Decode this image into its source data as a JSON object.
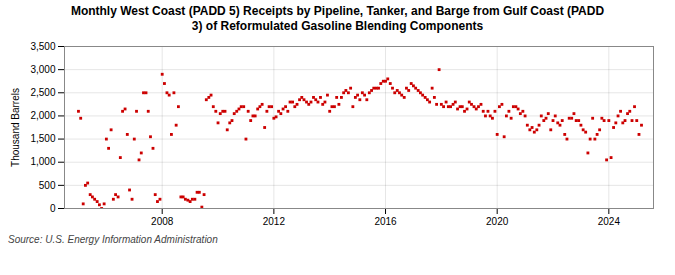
{
  "chart_data": {
    "type": "scatter",
    "title": "Monthly West Coast (PADD 5) Receipts by Pipeline, Tanker, and Barge from Gulf Coast (PADD\n3) of Reformulated Gasoline Blending Components",
    "ylabel": "Thousand Barrels",
    "source": "Source: U.S. Energy Information Administration",
    "color": "#cc0000",
    "marker": "square",
    "grid": true,
    "xlim": [
      2004.5,
      2025.6
    ],
    "xticks": [
      2008,
      2012,
      2016,
      2020,
      2024
    ],
    "ylim": [
      0,
      3500
    ],
    "yticks": [
      0,
      500,
      {
        "value": 1000,
        "label": "1,000"
      },
      {
        "value": 1500,
        "label": "1,500"
      },
      {
        "value": 2000,
        "label": "2,000"
      },
      {
        "value": 2500,
        "label": "2,500"
      },
      {
        "value": 3000,
        "label": "3,000"
      },
      {
        "value": 3500,
        "label": "3,500"
      }
    ],
    "x": [
      2005.0,
      2005.08,
      2005.17,
      2005.25,
      2005.33,
      2005.42,
      2005.5,
      2005.58,
      2005.67,
      2005.75,
      2005.83,
      2005.92,
      2006.0,
      2006.08,
      2006.17,
      2006.25,
      2006.33,
      2006.42,
      2006.5,
      2006.58,
      2006.67,
      2006.75,
      2006.83,
      2006.92,
      2007.0,
      2007.08,
      2007.17,
      2007.25,
      2007.33,
      2007.42,
      2007.5,
      2007.58,
      2007.67,
      2007.75,
      2007.83,
      2007.92,
      2008.0,
      2008.08,
      2008.17,
      2008.25,
      2008.33,
      2008.42,
      2008.5,
      2008.58,
      2008.67,
      2008.75,
      2008.83,
      2008.92,
      2009.0,
      2009.08,
      2009.17,
      2009.25,
      2009.33,
      2009.42,
      2009.5,
      2009.58,
      2009.67,
      2009.75,
      2009.83,
      2009.92,
      2010.0,
      2010.08,
      2010.17,
      2010.25,
      2010.33,
      2010.42,
      2010.5,
      2010.58,
      2010.67,
      2010.75,
      2010.83,
      2010.92,
      2011.0,
      2011.08,
      2011.17,
      2011.25,
      2011.33,
      2011.42,
      2011.5,
      2011.58,
      2011.67,
      2011.75,
      2011.83,
      2011.92,
      2012.0,
      2012.08,
      2012.17,
      2012.25,
      2012.33,
      2012.42,
      2012.5,
      2012.58,
      2012.67,
      2012.75,
      2012.83,
      2012.92,
      2013.0,
      2013.08,
      2013.17,
      2013.25,
      2013.33,
      2013.42,
      2013.5,
      2013.58,
      2013.67,
      2013.75,
      2013.83,
      2013.92,
      2014.0,
      2014.08,
      2014.17,
      2014.25,
      2014.33,
      2014.42,
      2014.5,
      2014.58,
      2014.67,
      2014.75,
      2014.83,
      2014.92,
      2015.0,
      2015.08,
      2015.17,
      2015.25,
      2015.33,
      2015.42,
      2015.5,
      2015.58,
      2015.67,
      2015.75,
      2015.83,
      2015.92,
      2016.0,
      2016.08,
      2016.17,
      2016.25,
      2016.33,
      2016.42,
      2016.5,
      2016.58,
      2016.67,
      2016.75,
      2016.83,
      2016.92,
      2017.0,
      2017.08,
      2017.17,
      2017.25,
      2017.33,
      2017.42,
      2017.5,
      2017.58,
      2017.67,
      2017.75,
      2017.83,
      2017.92,
      2018.0,
      2018.08,
      2018.17,
      2018.25,
      2018.33,
      2018.42,
      2018.5,
      2018.58,
      2018.67,
      2018.75,
      2018.83,
      2018.92,
      2019.0,
      2019.08,
      2019.17,
      2019.25,
      2019.33,
      2019.42,
      2019.5,
      2019.58,
      2019.67,
      2019.75,
      2019.83,
      2019.92,
      2020.0,
      2020.08,
      2020.17,
      2020.25,
      2020.33,
      2020.42,
      2020.5,
      2020.58,
      2020.67,
      2020.75,
      2020.83,
      2020.92,
      2021.0,
      2021.08,
      2021.17,
      2021.25,
      2021.33,
      2021.42,
      2021.5,
      2021.58,
      2021.67,
      2021.75,
      2021.83,
      2021.92,
      2022.0,
      2022.08,
      2022.17,
      2022.25,
      2022.33,
      2022.42,
      2022.5,
      2022.58,
      2022.67,
      2022.75,
      2022.83,
      2022.92,
      2023.0,
      2023.08,
      2023.17,
      2023.25,
      2023.33,
      2023.42,
      2023.5,
      2023.58,
      2023.67,
      2023.75,
      2023.83,
      2023.92,
      2024.0,
      2024.08,
      2024.17,
      2024.25,
      2024.33,
      2024.42,
      2024.5,
      2024.58,
      2024.67,
      2024.75,
      2024.83,
      2024.92,
      2025.0,
      2025.08,
      2025.17
    ],
    "values": [
      2100,
      1950,
      100,
      500,
      550,
      300,
      250,
      200,
      150,
      80,
      0,
      100,
      1500,
      1300,
      1700,
      200,
      300,
      250,
      1100,
      2100,
      2150,
      1600,
      400,
      200,
      1500,
      2100,
      1050,
      1200,
      2500,
      2500,
      2100,
      1550,
      1300,
      300,
      150,
      200,
      2900,
      2700,
      2500,
      2450,
      1600,
      2500,
      1800,
      2200,
      250,
      250,
      200,
      180,
      150,
      200,
      200,
      350,
      350,
      30,
      300,
      2350,
      2400,
      2450,
      2200,
      2100,
      1850,
      2050,
      2100,
      2100,
      1700,
      1850,
      1900,
      2050,
      2100,
      2150,
      2200,
      2200,
      1500,
      2100,
      1900,
      2000,
      2000,
      2150,
      2200,
      2250,
      1750,
      2100,
      2200,
      2200,
      1950,
      1980,
      2100,
      2050,
      2150,
      2200,
      2100,
      2300,
      2300,
      2200,
      2250,
      2350,
      2400,
      2350,
      2300,
      2250,
      2300,
      2400,
      2350,
      2300,
      2400,
      2250,
      2300,
      2450,
      2100,
      2200,
      2200,
      2400,
      2250,
      2400,
      2500,
      2550,
      2500,
      2600,
      2200,
      2400,
      2450,
      2350,
      2500,
      2450,
      2350,
      2500,
      2550,
      2600,
      2600,
      2600,
      2700,
      2750,
      2750,
      2800,
      2700,
      2600,
      2500,
      2550,
      2500,
      2450,
      2400,
      2600,
      2550,
      2700,
      2650,
      2600,
      2550,
      2500,
      2450,
      2400,
      2350,
      2300,
      2600,
      2400,
      2250,
      3000,
      2250,
      2200,
      2300,
      2200,
      2200,
      2250,
      2300,
      2150,
      2200,
      2200,
      2100,
      2150,
      2300,
      2250,
      2200,
      2150,
      2200,
      2250,
      2100,
      2000,
      2100,
      2000,
      1950,
      2100,
      1600,
      2200,
      2250,
      1550,
      2000,
      2100,
      1950,
      2200,
      2200,
      2150,
      2050,
      2100,
      2000,
      1800,
      1700,
      1750,
      1650,
      1700,
      1800,
      2000,
      1900,
      1950,
      2050,
      1700,
      1900,
      2000,
      1850,
      1800,
      1900,
      1600,
      1500,
      1950,
      1950,
      2050,
      1900,
      1900,
      1800,
      1700,
      1650,
      1200,
      1500,
      1950,
      1500,
      1600,
      1700,
      1950,
      1900,
      1050,
      1900,
      1100,
      1750,
      1850,
      2000,
      2100,
      1850,
      1900,
      2050,
      2100,
      1900,
      2200,
      1900,
      1600,
      1800
    ]
  }
}
